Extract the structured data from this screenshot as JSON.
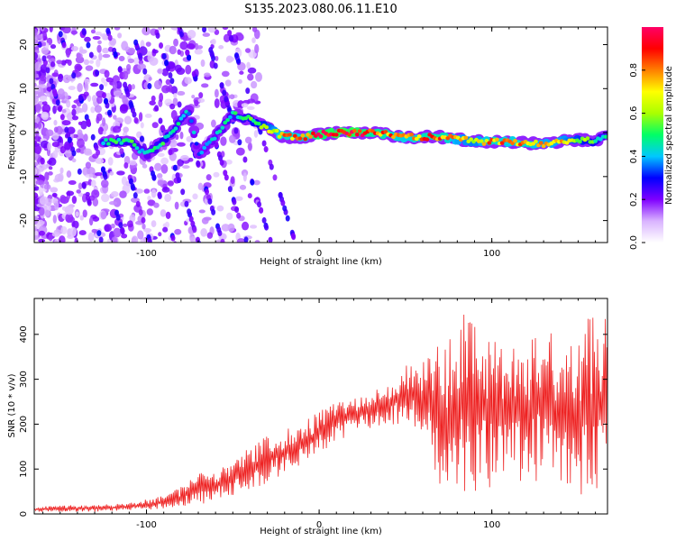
{
  "figure": {
    "title": "S135.2023.080.06.11.E10"
  },
  "colorbar": {
    "label": "Normalized spectral amplitude",
    "ticks": [
      "0.0",
      "0.2",
      "0.4",
      "0.6",
      "0.8"
    ],
    "colors": [
      "#ffffff",
      "#d9b3ff",
      "#7f00ff",
      "#0000ff",
      "#00c8ff",
      "#00ff66",
      "#aaff00",
      "#ffff00",
      "#ff7f00",
      "#ff0000",
      "#ff0066"
    ]
  },
  "chart_data": [
    {
      "type": "heatmap",
      "xlabel": "Height of straight line (km)",
      "ylabel": "Frequency (Hz)",
      "xlim": [
        -165,
        167
      ],
      "ylim": [
        -25,
        24
      ],
      "x_ticks": [
        "-100",
        "0",
        "100"
      ],
      "x_tick_values": [
        -100,
        0,
        100
      ],
      "y_ticks": [
        "-20",
        "-10",
        "0",
        "10",
        "20"
      ],
      "y_tick_values": [
        -20,
        -10,
        0,
        10,
        20
      ],
      "colorscale_range": [
        0.0,
        1.0
      ],
      "ridge": {
        "x": [
          -125,
          -110,
          -100,
          -90,
          -80,
          -75,
          -70,
          -60,
          -50,
          -40,
          -30,
          -20,
          -10,
          0,
          10,
          20,
          30,
          40,
          50,
          60,
          70,
          80,
          90,
          100,
          110,
          120,
          130,
          140,
          150,
          160,
          165
        ],
        "freq": [
          -2,
          -2,
          -5,
          -2,
          3,
          5,
          -5,
          -1,
          4,
          3,
          1,
          -1,
          -1,
          -0.5,
          0,
          0,
          0,
          -0.5,
          -1,
          -1,
          -1,
          -1.5,
          -2,
          -2,
          -2,
          -2.5,
          -2.5,
          -2,
          -1.5,
          -2,
          -1
        ],
        "amplitude": [
          0.45,
          0.5,
          0.4,
          0.5,
          0.45,
          0.4,
          0.35,
          0.4,
          0.45,
          0.5,
          0.6,
          0.8,
          0.75,
          0.9,
          0.95,
          0.95,
          0.85,
          0.8,
          0.75,
          0.8,
          0.85,
          0.7,
          0.65,
          0.8,
          0.75,
          0.8,
          0.7,
          0.7,
          0.6,
          0.5,
          0.45
        ]
      }
    },
    {
      "type": "line",
      "xlabel": "Height of straight line (km)",
      "ylabel": "SNR (10 * v/v)",
      "xlim": [
        -165,
        167
      ],
      "ylim": [
        0,
        480
      ],
      "x_ticks": [
        "-100",
        "0",
        "100"
      ],
      "x_tick_values": [
        -100,
        0,
        100
      ],
      "y_ticks": [
        "0",
        "100",
        "200",
        "300",
        "400"
      ],
      "y_tick_values": [
        0,
        100,
        200,
        300,
        400
      ],
      "series": [
        {
          "color": "#ee2222",
          "envelope_x": [
            -165,
            -150,
            -130,
            -110,
            -90,
            -80,
            -70,
            -60,
            -50,
            -40,
            -30,
            -20,
            -10,
            0,
            10,
            20,
            30,
            40,
            50,
            60,
            70,
            80,
            85,
            90,
            100,
            110,
            120,
            130,
            140,
            150,
            160,
            167
          ],
          "envelope_low": [
            5,
            5,
            5,
            8,
            10,
            15,
            20,
            30,
            40,
            50,
            70,
            90,
            110,
            130,
            160,
            180,
            190,
            200,
            190,
            180,
            60,
            40,
            30,
            50,
            60,
            80,
            60,
            80,
            40,
            40,
            30,
            30
          ],
          "envelope_high": [
            15,
            20,
            20,
            25,
            40,
            60,
            90,
            100,
            120,
            150,
            180,
            190,
            210,
            230,
            250,
            260,
            280,
            300,
            340,
            350,
            380,
            400,
            480,
            420,
            400,
            390,
            380,
            450,
            400,
            420,
            460,
            460
          ]
        }
      ]
    }
  ]
}
